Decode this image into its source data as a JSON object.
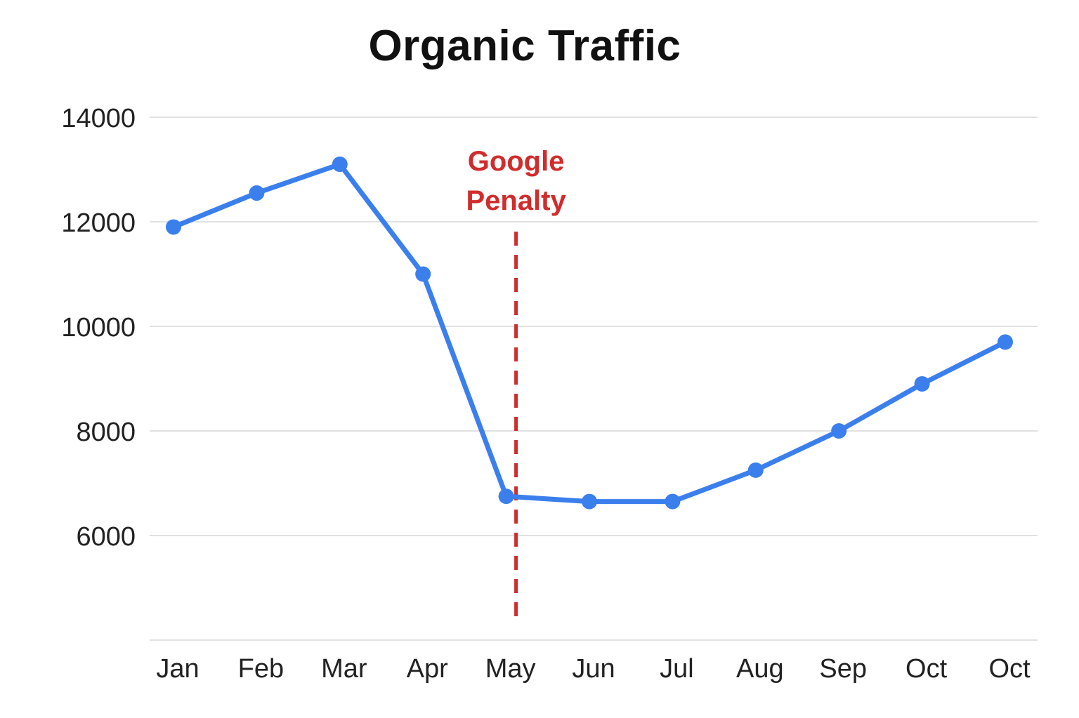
{
  "chart_data": {
    "type": "line",
    "title": "Organic Traffic",
    "xlabel": "",
    "ylabel": "",
    "categories": [
      "Jan",
      "Feb",
      "Mar",
      "Apr",
      "May",
      "Jun",
      "Jul",
      "Aug",
      "Sep",
      "Oct",
      "Oct"
    ],
    "series": [
      {
        "values": [
          11900,
          12550,
          13100,
          11000,
          6750,
          6650,
          6650,
          7250,
          8000,
          8900,
          9700
        ],
        "color": "#3b7fed"
      }
    ],
    "ylim": [
      4000,
      14000
    ],
    "yticks": [
      "14000",
      "12000",
      "10000",
      "8000",
      "6000"
    ],
    "grid": true,
    "legend": "none",
    "annotations": [
      {
        "type": "vertical-dashed-line",
        "at_category": "May",
        "text_lines": [
          "Google",
          "Penalty"
        ],
        "color": "#d12c2c"
      }
    ]
  }
}
